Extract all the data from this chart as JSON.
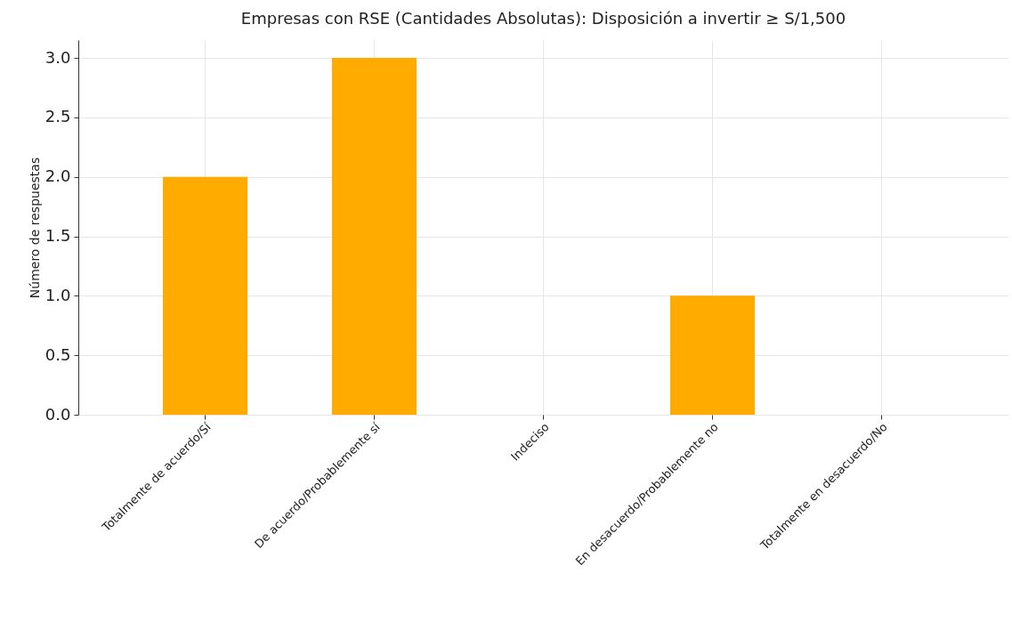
{
  "chart_data": {
    "type": "bar",
    "title": "Empresas con RSE (Cantidades Absolutas): Disposición a invertir ≥ S/1,500",
    "ylabel": "Número de respuestas",
    "categories": [
      "Totalmente de acuerdo/Sí",
      "De acuerdo/Probablemente sí",
      "Indeciso",
      "En desacuerdo/Probablemente no",
      "Totalmente en desacuerdo/No"
    ],
    "values": [
      2,
      3,
      0,
      1,
      0
    ],
    "color": "#ffab00",
    "ylim": [
      0,
      3.15
    ],
    "yticks": [
      {
        "value": 0,
        "label": "0.0"
      },
      {
        "value": 0.5,
        "label": "0.5"
      },
      {
        "value": 1,
        "label": "1.0"
      },
      {
        "value": 1.5,
        "label": "1.5"
      },
      {
        "value": 2,
        "label": "2.0"
      },
      {
        "value": 2.5,
        "label": "2.5"
      },
      {
        "value": 3,
        "label": "3.0"
      }
    ],
    "grid": true
  }
}
